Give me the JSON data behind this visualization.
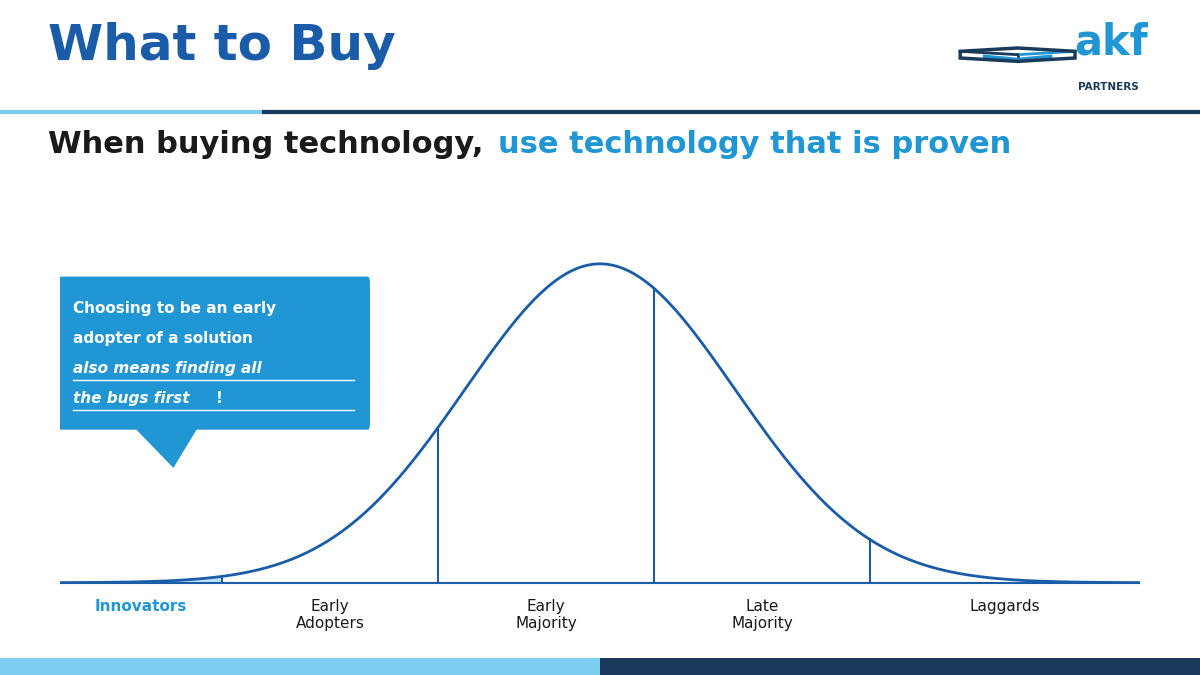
{
  "title": "What to Buy",
  "subtitle_black": "When buying technology, ",
  "subtitle_blue": "use technology that is proven",
  "title_color": "#1a5ca8",
  "subtitle_blue_color": "#2196d4",
  "subtitle_black_color": "#1a1a1a",
  "bg_color": "#ffffff",
  "curve_color": "#1a5ca8",
  "innovators_fill": "#b3dff5",
  "callout_bg": "#2196d4",
  "callout_text_color": "#ffffff",
  "callout_line1": "Choosing to be an early",
  "callout_line2": "adopter of a solution",
  "callout_line3_italic": "also means finding all",
  "callout_line4_italic": "the bugs first",
  "callout_exclaim": "!",
  "labels": [
    "Innovators",
    "Early\nAdopters",
    "Early\nMajority",
    "Late\nMajority",
    "Laggards"
  ],
  "label_color_innovators": "#2196d4",
  "label_color_rest": "#1a1a1a",
  "bottom_bar_light": "#7ecef4",
  "bottom_bar_dark": "#1a3a5c",
  "header_line_light": "#7ecef4",
  "header_line_dark": "#1a3a5c",
  "logo_cube_dark": "#1a3a5c",
  "logo_cube_light": "#2196d4",
  "logo_akf_color": "#2196d4",
  "logo_partners_color": "#1a3a5c"
}
